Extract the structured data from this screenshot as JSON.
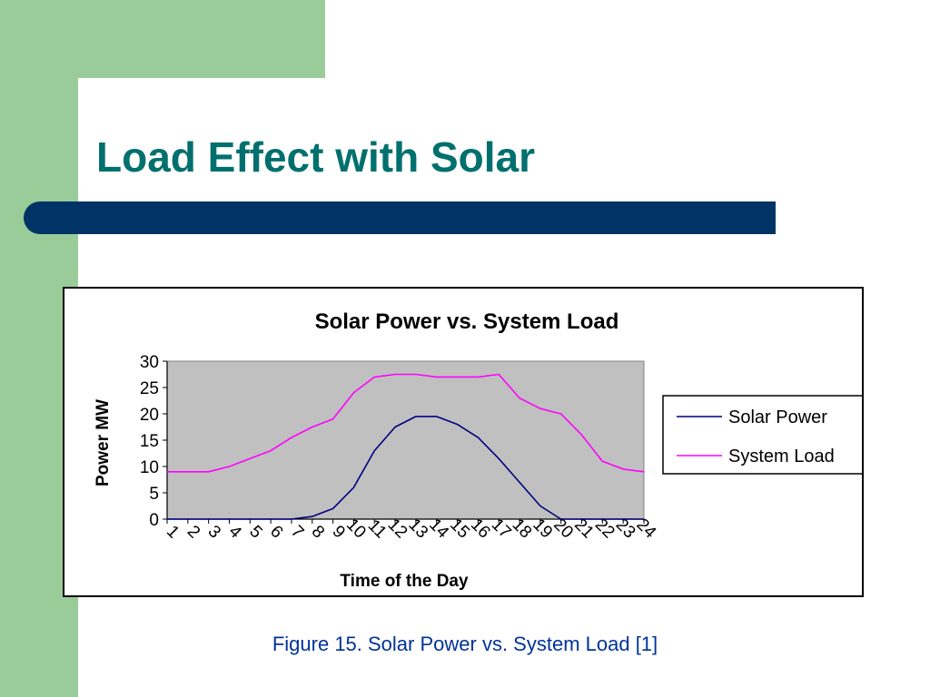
{
  "slide": {
    "title": "Load Effect with Solar",
    "caption": "Figure 15.  Solar Power vs. System Load [1]"
  },
  "colors": {
    "green_accent": "#99cc99",
    "title_text": "#00706e",
    "bar_navy": "#003366",
    "caption_text": "#003399",
    "plot_bg": "#c0c0c0"
  },
  "chart_data": {
    "type": "line",
    "title": "Solar Power vs. System Load",
    "xlabel": "Time of the Day",
    "ylabel": "Power MW",
    "categories": [
      "1",
      "2",
      "3",
      "4",
      "5",
      "6",
      "7",
      "8",
      "9",
      "10",
      "11",
      "12",
      "13",
      "14",
      "15",
      "16",
      "17",
      "18",
      "19",
      "20",
      "21",
      "22",
      "23",
      "24"
    ],
    "ylim": [
      0,
      30
    ],
    "yticks": [
      "0",
      "5",
      "10",
      "15",
      "20",
      "25",
      "30"
    ],
    "grid": false,
    "legend_position": "right",
    "series": [
      {
        "name": "Solar Power",
        "color": "#000080",
        "values": [
          0,
          0,
          0,
          0,
          0,
          0,
          0,
          0.5,
          2,
          6,
          13,
          17.5,
          19.5,
          19.5,
          18,
          15.5,
          11.5,
          7,
          2.5,
          0,
          0,
          0,
          0,
          0
        ]
      },
      {
        "name": "System Load",
        "color": "#ff00ff",
        "values": [
          9,
          9,
          9,
          10,
          11.5,
          13,
          15.5,
          17.5,
          19,
          24,
          27,
          27.5,
          27.5,
          27,
          27,
          27,
          27.5,
          23,
          21,
          20,
          16,
          11,
          9.5,
          9
        ]
      }
    ]
  }
}
